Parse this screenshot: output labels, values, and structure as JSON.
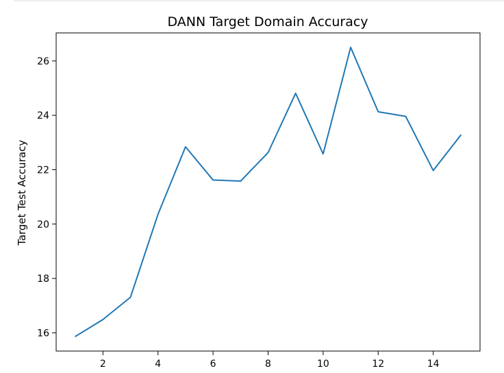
{
  "chart_data": {
    "type": "line",
    "title": "DANN Target Domain Accuracy",
    "xlabel": "",
    "ylabel": "Target Test Accuracy",
    "x": [
      1,
      2,
      3,
      4,
      5,
      6,
      7,
      8,
      9,
      10,
      11,
      12,
      13,
      14,
      15
    ],
    "series": [
      {
        "values": [
          15.87,
          16.49,
          17.31,
          20.36,
          22.84,
          21.62,
          21.58,
          22.63,
          24.81,
          22.58,
          26.5,
          24.13,
          23.96,
          21.97,
          23.27
        ],
        "color": "#1f77b4"
      }
    ],
    "xticks": [
      "2",
      "4",
      "6",
      "8",
      "10",
      "12",
      "14"
    ],
    "yticks": [
      "16",
      "18",
      "20",
      "22",
      "24",
      "26"
    ],
    "xlim": [
      0.3,
      15.7
    ],
    "ylim": [
      15.33,
      27.03
    ],
    "grid": false,
    "legend": "none"
  }
}
